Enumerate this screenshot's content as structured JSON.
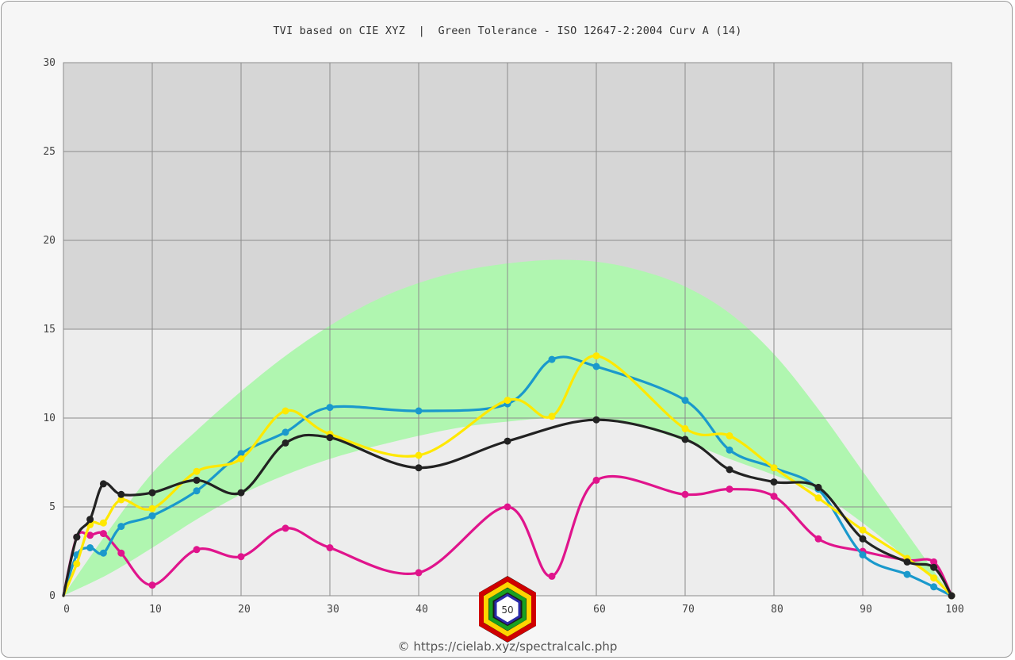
{
  "title": "TVI based on CIE XYZ  |  Green Tolerance - ISO 12647-2:2004 Curv A (14)",
  "footer": "© https://cielab.xyz/spectralcalc.php",
  "logo_text": "50",
  "chart_data": {
    "type": "line",
    "title": "TVI based on CIE XYZ  |  Green Tolerance - ISO 12647-2:2004 Curv A (14)",
    "xlabel": "",
    "ylabel": "",
    "xlim": [
      0,
      100
    ],
    "ylim": [
      0,
      30
    ],
    "x_ticks": [
      "0",
      "10",
      "20",
      "30",
      "40",
      "50",
      "60",
      "70",
      "80",
      "90",
      "100"
    ],
    "y_ticks": [
      "0",
      "5",
      "10",
      "15",
      "20",
      "25",
      "30"
    ],
    "grid": true,
    "tolerance_band": {
      "color": "#b0f6b0",
      "x": [
        0,
        5,
        10,
        15,
        20,
        25,
        30,
        35,
        40,
        45,
        50,
        55,
        60,
        65,
        70,
        75,
        80,
        85,
        90,
        95,
        98,
        100
      ],
      "upper": [
        0,
        3.6,
        6.9,
        9.3,
        11.5,
        13.5,
        15.2,
        16.6,
        17.6,
        18.3,
        18.7,
        18.9,
        18.8,
        18.3,
        17.4,
        15.9,
        13.6,
        10.5,
        7.0,
        3.5,
        1.4,
        0
      ],
      "lower": [
        0,
        1.2,
        2.7,
        4.3,
        5.7,
        6.8,
        7.7,
        8.4,
        9.0,
        9.5,
        9.8,
        10.0,
        9.9,
        9.5,
        8.7,
        7.7,
        6.8,
        5.8,
        4.1,
        2.1,
        0.9,
        0
      ]
    },
    "series": [
      {
        "color": "#e0148c",
        "x": [
          0,
          1.5,
          3,
          4.5,
          6.5,
          10,
          15,
          20,
          25,
          30,
          40,
          50,
          55,
          60,
          70,
          75,
          80,
          85,
          90,
          95,
          98,
          100
        ],
        "y": [
          0,
          3.3,
          3.4,
          3.5,
          2.4,
          0.6,
          2.6,
          2.2,
          3.8,
          2.7,
          1.3,
          5.0,
          1.1,
          6.5,
          5.7,
          6.0,
          5.6,
          3.2,
          2.5,
          2.0,
          1.9,
          0
        ]
      },
      {
        "color": "#1a99cc",
        "x": [
          0,
          1.5,
          3,
          4.5,
          6.5,
          10,
          15,
          20,
          25,
          30,
          40,
          50,
          55,
          60,
          70,
          75,
          80,
          85,
          90,
          95,
          98,
          100
        ],
        "y": [
          0,
          2.3,
          2.7,
          2.4,
          3.9,
          4.5,
          5.9,
          8.0,
          9.2,
          10.6,
          10.4,
          10.8,
          13.3,
          12.9,
          11.0,
          8.2,
          7.2,
          6.0,
          2.3,
          1.2,
          0.5,
          0
        ]
      },
      {
        "color": "#ffe800",
        "x": [
          0,
          1.5,
          3,
          4.5,
          6.5,
          10,
          15,
          20,
          25,
          30,
          40,
          50,
          55,
          60,
          70,
          75,
          80,
          85,
          90,
          95,
          98,
          100
        ],
        "y": [
          0,
          1.8,
          4.0,
          4.1,
          5.4,
          4.9,
          7.0,
          7.7,
          10.4,
          9.1,
          7.9,
          11.0,
          10.1,
          13.5,
          9.4,
          9.0,
          7.2,
          5.5,
          3.7,
          2.1,
          1.0,
          0
        ]
      },
      {
        "color": "#222222",
        "x": [
          0,
          1.5,
          3,
          4.5,
          6.5,
          10,
          15,
          20,
          25,
          30,
          40,
          50,
          60,
          70,
          75,
          80,
          85,
          90,
          95,
          98,
          100
        ],
        "y": [
          0,
          3.3,
          4.3,
          6.3,
          5.7,
          5.8,
          6.5,
          5.8,
          8.6,
          8.9,
          7.2,
          8.7,
          9.9,
          8.8,
          7.1,
          6.4,
          6.1,
          3.2,
          1.9,
          1.6,
          0
        ]
      }
    ]
  }
}
